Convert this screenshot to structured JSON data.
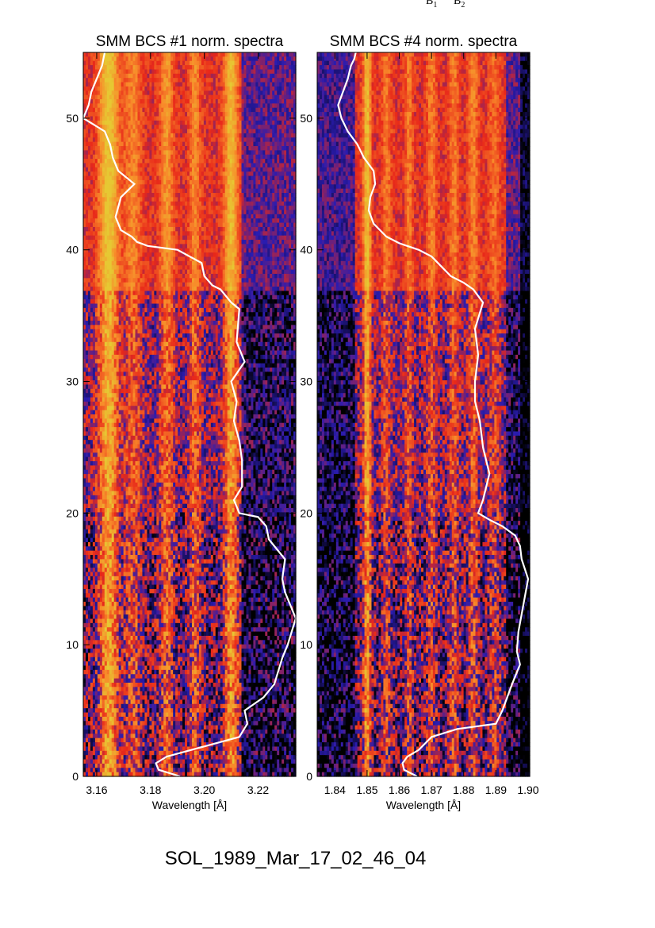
{
  "top_labels": [
    {
      "base": "B",
      "sub": "1"
    },
    {
      "base": "B",
      "sub": "2"
    }
  ],
  "footer": "SOL_1989_Mar_17_02_46_04",
  "colors": {
    "low": "#000000",
    "mid_low": "#2a1cb0",
    "mid": "#e8281a",
    "mid_high": "#f88a2a",
    "high": "#e6c833",
    "curve": "#ffffff"
  },
  "chart_data": [
    {
      "type": "heatmap",
      "title": "SMM BCS #1 norm. spectra",
      "xlabel": "Wavelength [Å]",
      "ylabel": "",
      "xlim": [
        3.155,
        3.234
      ],
      "ylim": [
        0,
        55
      ],
      "xticks": [
        3.16,
        3.18,
        3.2,
        3.22
      ],
      "xtick_labels": [
        "3.16",
        "3.18",
        "3.20",
        "3.22"
      ],
      "yticks": [
        0,
        10,
        20,
        30,
        40,
        50
      ],
      "ytick_labels": [
        "0",
        "10",
        "20",
        "30",
        "40",
        "50"
      ],
      "line_features": [
        {
          "x": 3.1645,
          "width": 0.0035,
          "strength": 1.0
        },
        {
          "x": 3.1735,
          "width": 0.003,
          "strength": 0.45
        },
        {
          "x": 3.186,
          "width": 0.0025,
          "strength": 0.55
        },
        {
          "x": 3.1965,
          "width": 0.002,
          "strength": 0.5
        },
        {
          "x": 3.21,
          "width": 0.0025,
          "strength": 0.85
        }
      ],
      "continuum_fade_from": 3.214,
      "overlay_curve": {
        "name": "",
        "x": [
          3.191,
          3.183,
          3.182,
          3.186,
          3.195,
          3.213,
          3.216,
          3.215,
          3.222,
          3.226,
          3.229,
          3.231,
          3.234,
          3.23,
          3.229,
          3.23,
          3.224,
          3.223,
          3.22,
          3.213,
          3.211,
          3.214,
          3.214,
          3.213,
          3.211,
          3.212,
          3.21,
          3.215,
          3.212,
          3.213,
          3.21,
          3.206,
          3.203,
          3.2,
          3.199,
          3.19,
          3.179,
          3.175,
          3.173,
          3.169,
          3.167,
          3.169,
          3.174,
          3.168,
          3.166,
          3.165,
          3.163,
          3.159,
          3.155,
          3.157,
          3.158,
          3.16,
          3.162,
          3.163
        ],
        "y": [
          0.0,
          0.5,
          1.0,
          1.5,
          2.0,
          3.0,
          4.0,
          5.0,
          6.0,
          7.0,
          9.0,
          10.0,
          12.0,
          14.0,
          15.0,
          16.5,
          18.0,
          19.0,
          19.7,
          20.0,
          21.0,
          22.0,
          24.0,
          25.5,
          27.0,
          28.5,
          30.0,
          31.5,
          33.0,
          35.5,
          36.0,
          37.0,
          37.3,
          38.0,
          39.0,
          40.0,
          40.3,
          40.6,
          41.0,
          41.5,
          42.5,
          44.0,
          45.0,
          46.0,
          47.0,
          48.0,
          49.0,
          49.5,
          50.0,
          51.0,
          52.0,
          53.0,
          54.0,
          55.0
        ]
      }
    },
    {
      "type": "heatmap",
      "title": "SMM BCS #4 norm. spectra",
      "xlabel": "Wavelength [Å]",
      "ylabel": "",
      "xlim": [
        1.8345,
        1.9005
      ],
      "ylim": [
        0,
        55
      ],
      "xticks": [
        1.84,
        1.85,
        1.86,
        1.87,
        1.88,
        1.89,
        1.9
      ],
      "xtick_labels": [
        "1.84",
        "1.85",
        "1.86",
        "1.87",
        "1.88",
        "1.89",
        "1.90"
      ],
      "yticks": [
        0,
        10,
        20,
        30,
        40,
        50
      ],
      "ytick_labels": [
        "0",
        "10",
        "20",
        "30",
        "40",
        "50"
      ],
      "line_features": [
        {
          "x": 1.85,
          "width": 0.0012,
          "strength": 0.9
        },
        {
          "x": 1.856,
          "width": 0.0015,
          "strength": 0.35
        },
        {
          "x": 1.863,
          "width": 0.0012,
          "strength": 0.4
        },
        {
          "x": 1.87,
          "width": 0.0015,
          "strength": 0.4
        },
        {
          "x": 1.877,
          "width": 0.0015,
          "strength": 0.4
        },
        {
          "x": 1.883,
          "width": 0.0015,
          "strength": 0.45
        },
        {
          "x": 1.8895,
          "width": 0.0018,
          "strength": 0.3
        }
      ],
      "continuum_fade_from": 1.893,
      "overlay_curve": {
        "name": "",
        "x": [
          1.8655,
          1.8615,
          1.861,
          1.8625,
          1.866,
          1.87,
          1.878,
          1.89,
          1.892,
          1.895,
          1.8975,
          1.8965,
          1.897,
          1.8985,
          1.9,
          1.898,
          1.8975,
          1.896,
          1.892,
          1.888,
          1.8845,
          1.886,
          1.888,
          1.886,
          1.885,
          1.8835,
          1.8835,
          1.8845,
          1.8835,
          1.886,
          1.883,
          1.88,
          1.876,
          1.872,
          1.87,
          1.866,
          1.86,
          1.856,
          1.852,
          1.8505,
          1.851,
          1.8525,
          1.852,
          1.849,
          1.847,
          1.844,
          1.842,
          1.841,
          1.8425,
          1.844,
          1.845,
          1.846,
          1.8465
        ],
        "y": [
          0.0,
          0.5,
          1.0,
          1.5,
          2.0,
          3.0,
          3.6,
          4.0,
          5.0,
          7.0,
          8.5,
          9.5,
          11.0,
          13.0,
          15.0,
          16.5,
          17.5,
          18.3,
          19.0,
          19.5,
          20.0,
          21.0,
          23.0,
          25.0,
          27.0,
          28.5,
          30.0,
          32.0,
          34.0,
          36.0,
          37.0,
          37.5,
          38.0,
          39.0,
          39.5,
          40.0,
          40.5,
          41.0,
          42.0,
          43.0,
          44.0,
          45.0,
          46.0,
          47.0,
          48.0,
          49.0,
          50.0,
          51.0,
          52.0,
          53.0,
          54.0,
          54.5,
          55.0
        ]
      }
    }
  ]
}
